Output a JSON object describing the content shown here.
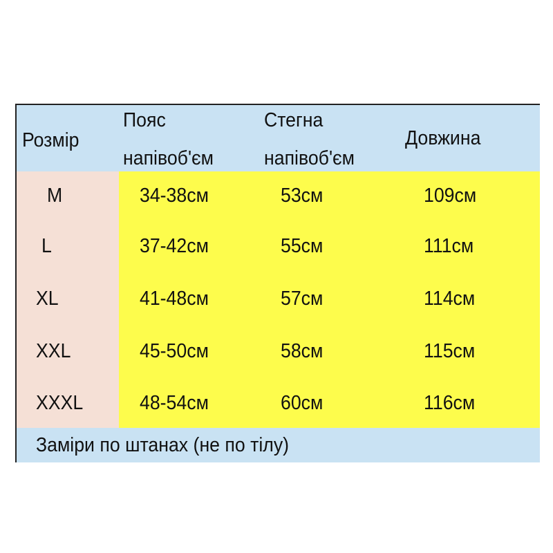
{
  "table": {
    "headers": [
      {
        "line1": "Розмір",
        "line2": ""
      },
      {
        "line1": "Пояс",
        "line2": "напівоб'єм"
      },
      {
        "line1": "Стегна",
        "line2": "напівоб'єм"
      },
      {
        "line1": "Довжина",
        "line2": ""
      }
    ],
    "rows": [
      [
        "M",
        "34-38см",
        "53см",
        "109см"
      ],
      [
        "L",
        "37-42см",
        "55см",
        "111см"
      ],
      [
        "XL",
        "41-48см",
        "57см",
        "114см"
      ],
      [
        "XXL",
        "45-50см",
        "58см",
        "115см"
      ],
      [
        "XXXL",
        "48-54см",
        "60см",
        "116см"
      ]
    ],
    "footer_note": "Заміри по штанах (не по тілу)"
  },
  "colors": {
    "header": "#c9e2f3",
    "size_column": "#f5e0d6",
    "values": "#fdfc4c",
    "border": "#222222"
  }
}
